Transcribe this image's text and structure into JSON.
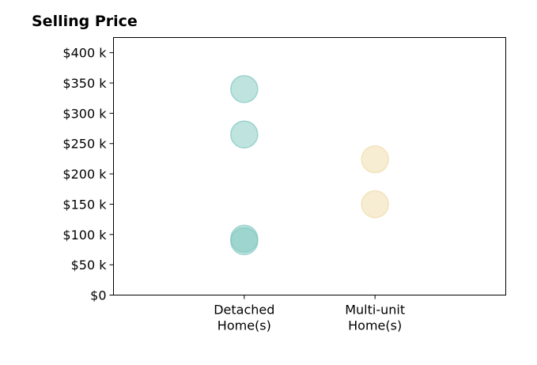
{
  "chart_data": {
    "type": "scatter",
    "title": "Selling Price",
    "xlabel": "",
    "ylabel": "",
    "categories": [
      {
        "lines": [
          "Detached",
          "Home(s)"
        ]
      },
      {
        "lines": [
          "Multi-unit",
          "Home(s)"
        ]
      }
    ],
    "x_range": [
      -1,
      2
    ],
    "ylim": [
      0,
      425000
    ],
    "y_ticks": [
      {
        "value": 0,
        "label": "$0"
      },
      {
        "value": 50000,
        "label": "$50 k"
      },
      {
        "value": 100000,
        "label": "$100 k"
      },
      {
        "value": 150000,
        "label": "$150 k"
      },
      {
        "value": 200000,
        "label": "$200 k"
      },
      {
        "value": 250000,
        "label": "$250 k"
      },
      {
        "value": 300000,
        "label": "$300 k"
      },
      {
        "value": 350000,
        "label": "$350 k"
      },
      {
        "value": 400000,
        "label": "$400 k"
      }
    ],
    "grid": false,
    "legend": "none",
    "series": [
      {
        "category_index": 0,
        "color": "#7fc8c0",
        "values": [
          340000,
          265000,
          93000,
          89000
        ]
      },
      {
        "category_index": 1,
        "color": "#f0dca8",
        "values": [
          224000,
          150000
        ]
      }
    ]
  }
}
